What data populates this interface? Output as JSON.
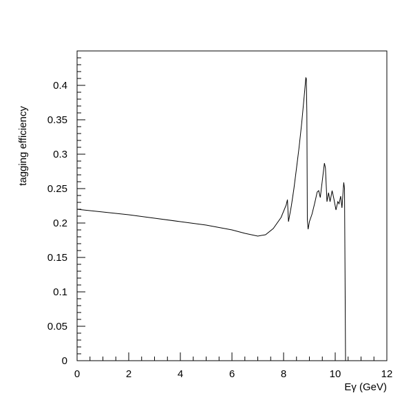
{
  "chart_data": {
    "type": "line",
    "title": "",
    "xlabel": "Eγ (GeV)",
    "ylabel": "tagging efficiency",
    "xlim": [
      0,
      12
    ],
    "ylim": [
      0,
      0.45
    ],
    "xticks": [
      0,
      2,
      4,
      6,
      8,
      10,
      12
    ],
    "xtick_labels": [
      "0",
      "2",
      "4",
      "6",
      "8",
      "10",
      "12"
    ],
    "yticks": [
      0,
      0.05,
      0.1,
      0.15,
      0.2,
      0.25,
      0.3,
      0.35,
      0.4
    ],
    "ytick_labels": [
      "0",
      "0.05",
      "0.1",
      "0.15",
      "0.2",
      "0.25",
      "0.3",
      "0.35",
      "0.4"
    ],
    "grid": false,
    "series": [
      {
        "name": "tagging efficiency",
        "color": "#000000",
        "x": [
          0,
          1,
          2,
          3,
          4,
          5,
          6,
          6.5,
          7,
          7.3,
          7.6,
          7.9,
          8.1,
          8.15,
          8.19,
          8.3,
          8.4,
          8.5,
          8.6,
          8.7,
          8.8,
          8.86,
          8.88,
          8.9,
          8.92,
          8.95,
          9.0,
          9.1,
          9.2,
          9.3,
          9.36,
          9.42,
          9.5,
          9.58,
          9.62,
          9.68,
          9.74,
          9.8,
          9.88,
          9.95,
          10.03,
          10.1,
          10.15,
          10.21,
          10.26,
          10.33,
          10.36,
          10.38,
          10.4
        ],
        "y": [
          0.22,
          0.216,
          0.212,
          0.207,
          0.202,
          0.197,
          0.19,
          0.185,
          0.181,
          0.183,
          0.192,
          0.208,
          0.226,
          0.234,
          0.202,
          0.225,
          0.25,
          0.28,
          0.31,
          0.345,
          0.385,
          0.411,
          0.41,
          0.36,
          0.205,
          0.191,
          0.202,
          0.213,
          0.228,
          0.245,
          0.247,
          0.237,
          0.262,
          0.287,
          0.28,
          0.231,
          0.244,
          0.231,
          0.247,
          0.235,
          0.219,
          0.231,
          0.228,
          0.239,
          0.222,
          0.259,
          0.25,
          0.12,
          0.0
        ]
      }
    ]
  }
}
